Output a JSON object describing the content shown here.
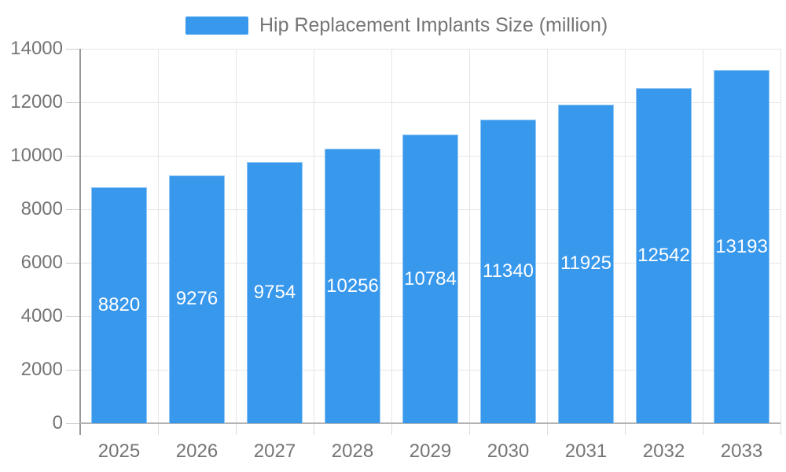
{
  "legend": {
    "label": "Hip Replacement Implants Size (million)"
  },
  "colors": {
    "bar": "#3898ec",
    "bar_edge": "rgba(255,255,255,0.45)",
    "bar_value_text": "#ffffff",
    "axis_text": "#757575",
    "grid": "#e6e6e6",
    "y_axis_line": "#999999",
    "x_axis_line": "#b3b3b3",
    "y_tick": "#cccccc",
    "x_tick": "#dddddd"
  },
  "chart_data": {
    "type": "bar",
    "title": "Hip Replacement Implants Size (million)",
    "categories": [
      "2025",
      "2026",
      "2027",
      "2028",
      "2029",
      "2030",
      "2031",
      "2032",
      "2033"
    ],
    "values": [
      8820,
      9276,
      9754,
      10256,
      10784,
      11340,
      11925,
      12542,
      13193
    ],
    "xlabel": "",
    "ylabel": "",
    "ylim": [
      0,
      14000
    ],
    "yticks": [
      0,
      2000,
      4000,
      6000,
      8000,
      10000,
      12000,
      14000
    ],
    "grid": true,
    "legend_position": "top",
    "value_labels": "inside-center"
  }
}
